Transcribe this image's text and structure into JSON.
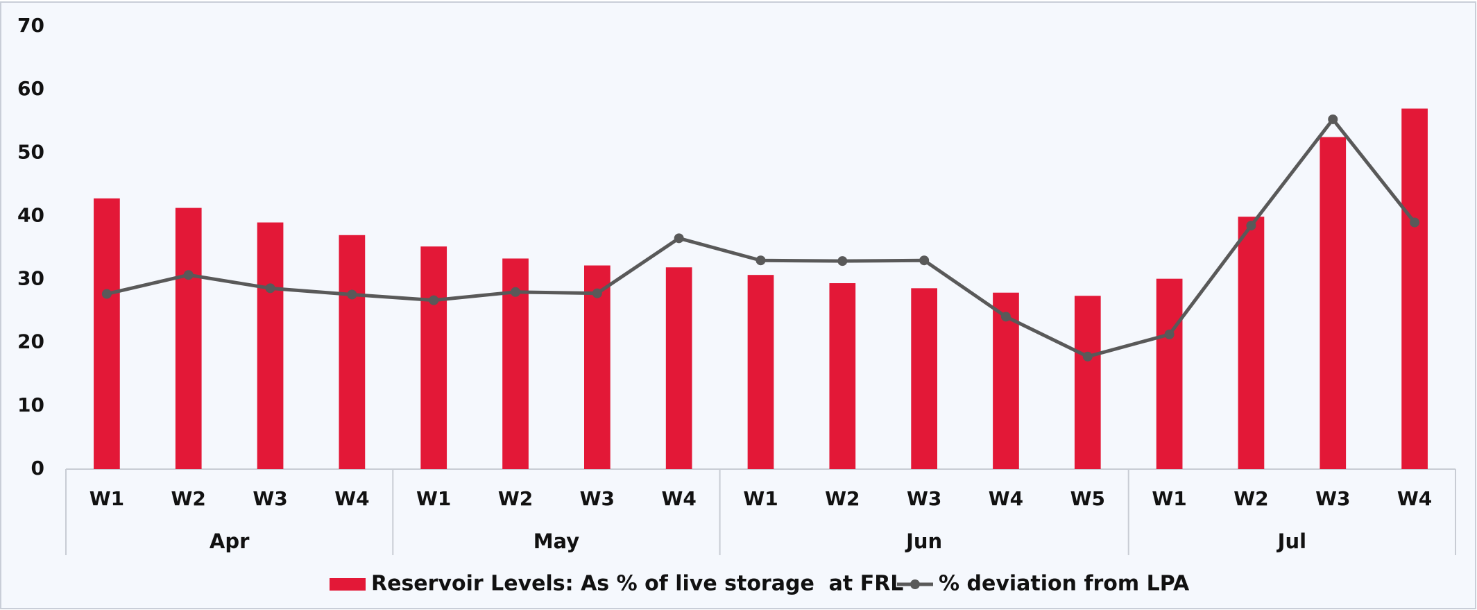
{
  "chart_data": {
    "type": "bar_line",
    "categories": [
      "W1",
      "W2",
      "W3",
      "W4",
      "W1",
      "W2",
      "W3",
      "W4",
      "W1",
      "W2",
      "W3",
      "W4",
      "W5",
      "W1",
      "W2",
      "W3",
      "W4"
    ],
    "category_groups": [
      {
        "label": "Apr",
        "size": 4
      },
      {
        "label": "May",
        "size": 4
      },
      {
        "label": "Jun",
        "size": 5
      },
      {
        "label": "Jul",
        "size": 4
      }
    ],
    "series": [
      {
        "name": "Reservoir Levels: As % of live storage  at FRL",
        "type": "bar",
        "color": "#e31837",
        "values": [
          42.8,
          41.3,
          39,
          37,
          35.2,
          33.3,
          32.2,
          31.9,
          30.7,
          29.4,
          28.6,
          27.9,
          27.4,
          30.1,
          39.9,
          52.5,
          57
        ]
      },
      {
        "name": "% deviation from LPA",
        "type": "line",
        "color": "#595959",
        "values": [
          27.7,
          30.7,
          28.6,
          27.6,
          26.7,
          28,
          27.8,
          36.5,
          33,
          32.9,
          33,
          24.1,
          17.8,
          21.3,
          38.5,
          55.3,
          39
        ]
      }
    ],
    "ylim": [
      0,
      70
    ],
    "yticks": [
      0,
      10,
      20,
      30,
      40,
      50,
      60,
      70
    ],
    "grid": false,
    "legend": "bottom"
  }
}
